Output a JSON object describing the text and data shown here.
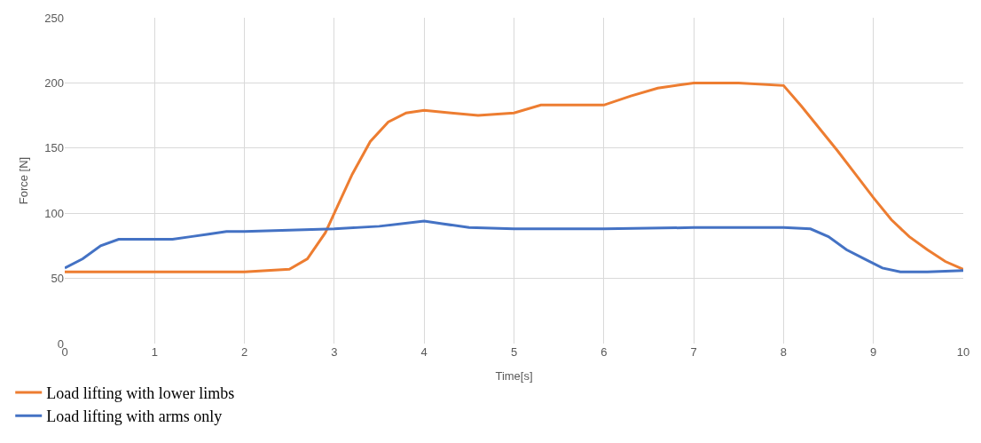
{
  "chart_data": {
    "type": "line",
    "xlabel": "Time[s]",
    "ylabel": "Force [N]",
    "xlim": [
      0,
      10
    ],
    "xticks": [
      0,
      1,
      2,
      3,
      4,
      5,
      6,
      7,
      8,
      9,
      10
    ],
    "ylim": [
      0,
      250
    ],
    "yticks": [
      0,
      50,
      100,
      150,
      200,
      250
    ],
    "grid": true,
    "legend": "bottom left",
    "marker": "none",
    "line_style": "solid",
    "series": [
      {
        "name": "Load lifting with lower limbs",
        "color": "#ed7d31",
        "x": [
          0,
          0.5,
          1,
          1.5,
          2,
          2.5,
          2.7,
          2.9,
          3.0,
          3.2,
          3.4,
          3.6,
          3.8,
          4.0,
          4.3,
          4.6,
          5.0,
          5.3,
          5.6,
          6.0,
          6.3,
          6.6,
          7.0,
          7.5,
          8.0,
          8.2,
          8.4,
          8.6,
          8.8,
          9.0,
          9.2,
          9.4,
          9.6,
          9.8,
          10
        ],
        "values": [
          55,
          55,
          55,
          55,
          55,
          57,
          65,
          85,
          100,
          130,
          155,
          170,
          177,
          179,
          177,
          175,
          177,
          183,
          183,
          183,
          190,
          196,
          200,
          200,
          198,
          182,
          165,
          148,
          130,
          112,
          95,
          82,
          72,
          63,
          57
        ]
      },
      {
        "name": "Load lifting with arms only",
        "color": "#4472c4",
        "x": [
          0,
          0.2,
          0.4,
          0.6,
          0.8,
          1.0,
          1.2,
          1.4,
          1.6,
          1.8,
          2.0,
          2.5,
          3.0,
          3.5,
          4.0,
          4.2,
          4.5,
          5,
          6,
          7,
          8,
          8.3,
          8.5,
          8.7,
          8.9,
          9.1,
          9.3,
          9.6,
          10
        ],
        "values": [
          58,
          65,
          75,
          80,
          80,
          80,
          80,
          82,
          84,
          86,
          86,
          87,
          88,
          90,
          94,
          92,
          89,
          88,
          88,
          89,
          89,
          88,
          82,
          72,
          65,
          58,
          55,
          55,
          56
        ]
      }
    ]
  }
}
